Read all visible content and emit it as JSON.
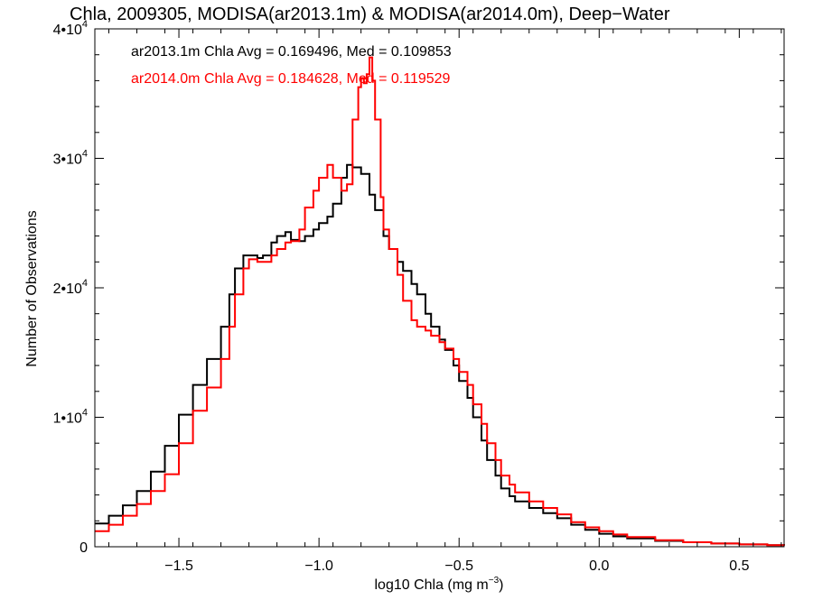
{
  "chart_data": {
    "type": "line",
    "title": "Chla, 2009305, MODISA(ar2013.1m) & MODISA(ar2014.0m), Deep−Water",
    "xlabel": "log10 Chla (mg m",
    "xlabel_sup": "−3",
    "xlabel_suffix": ")",
    "ylabel": "Number of Observations",
    "xlim": [
      -1.8,
      0.66
    ],
    "ylim": [
      0,
      40000
    ],
    "grid": false,
    "x_ticks": [
      {
        "value": -1.5,
        "label": "−1.5"
      },
      {
        "value": -1.0,
        "label": "−1.0"
      },
      {
        "value": -0.5,
        "label": "−0.5"
      },
      {
        "value": 0.0,
        "label": "0.0"
      },
      {
        "value": 0.5,
        "label": "0.5"
      }
    ],
    "y_ticks": [
      {
        "value": 0,
        "label": "0",
        "sup": ""
      },
      {
        "value": 10000,
        "label": "1•10",
        "sup": "4"
      },
      {
        "value": 20000,
        "label": "2•10",
        "sup": "4"
      },
      {
        "value": 30000,
        "label": "3•10",
        "sup": "4"
      },
      {
        "value": 40000,
        "label": "4•10",
        "sup": "4"
      }
    ],
    "annotations": [
      {
        "text": "ar2013.1m Chla Avg = 0.169496, Med = 0.109853",
        "color": "#000000"
      },
      {
        "text": "ar2014.0m Chla Avg = 0.184628, Med = 0.119529",
        "color": "#ff0000"
      }
    ],
    "series": [
      {
        "color": "#000000",
        "x": [
          -1.8,
          -1.75,
          -1.7,
          -1.65,
          -1.6,
          -1.55,
          -1.5,
          -1.45,
          -1.4,
          -1.35,
          -1.32,
          -1.3,
          -1.27,
          -1.25,
          -1.22,
          -1.2,
          -1.17,
          -1.15,
          -1.12,
          -1.1,
          -1.07,
          -1.05,
          -1.02,
          -1.0,
          -0.97,
          -0.95,
          -0.92,
          -0.9,
          -0.88,
          -0.85,
          -0.82,
          -0.8,
          -0.77,
          -0.75,
          -0.72,
          -0.7,
          -0.67,
          -0.65,
          -0.62,
          -0.6,
          -0.57,
          -0.55,
          -0.52,
          -0.5,
          -0.47,
          -0.45,
          -0.42,
          -0.4,
          -0.37,
          -0.35,
          -0.32,
          -0.3,
          -0.25,
          -0.2,
          -0.15,
          -0.1,
          -0.05,
          0.0,
          0.05,
          0.1,
          0.2,
          0.3,
          0.4,
          0.5,
          0.6,
          0.66
        ],
        "y": [
          1800,
          2400,
          3200,
          4300,
          5800,
          7800,
          10200,
          12500,
          14500,
          17000,
          19500,
          21500,
          22500,
          22500,
          22300,
          22500,
          23500,
          24000,
          24300,
          23700,
          23600,
          24000,
          24500,
          25000,
          25500,
          26500,
          28500,
          29500,
          29300,
          28800,
          27200,
          26000,
          24000,
          23000,
          22000,
          21300,
          20300,
          19500,
          18000,
          17000,
          16000,
          15200,
          14000,
          12800,
          11500,
          10000,
          8200,
          6700,
          5500,
          4500,
          3900,
          3500,
          3000,
          2600,
          2200,
          1700,
          1300,
          1000,
          800,
          650,
          450,
          350,
          250,
          180,
          120,
          100
        ]
      },
      {
        "color": "#ff0000",
        "x": [
          -1.8,
          -1.75,
          -1.7,
          -1.65,
          -1.6,
          -1.55,
          -1.5,
          -1.45,
          -1.4,
          -1.35,
          -1.32,
          -1.3,
          -1.27,
          -1.25,
          -1.22,
          -1.2,
          -1.17,
          -1.15,
          -1.12,
          -1.1,
          -1.07,
          -1.05,
          -1.02,
          -1.0,
          -0.97,
          -0.95,
          -0.92,
          -0.9,
          -0.88,
          -0.86,
          -0.85,
          -0.84,
          -0.83,
          -0.82,
          -0.81,
          -0.8,
          -0.78,
          -0.77,
          -0.75,
          -0.72,
          -0.7,
          -0.67,
          -0.65,
          -0.62,
          -0.6,
          -0.57,
          -0.55,
          -0.52,
          -0.5,
          -0.47,
          -0.45,
          -0.42,
          -0.4,
          -0.37,
          -0.35,
          -0.32,
          -0.3,
          -0.25,
          -0.2,
          -0.15,
          -0.1,
          -0.05,
          0.0,
          0.05,
          0.1,
          0.2,
          0.3,
          0.4,
          0.5,
          0.6,
          0.66
        ],
        "y": [
          1200,
          1700,
          2400,
          3300,
          4300,
          5600,
          8000,
          10500,
          12300,
          14500,
          17000,
          19500,
          21500,
          22200,
          22000,
          22000,
          22500,
          23000,
          23500,
          23600,
          24500,
          26200,
          27500,
          28500,
          29500,
          28500,
          27500,
          28000,
          33000,
          35500,
          36200,
          35800,
          36500,
          37800,
          36000,
          33000,
          27000,
          24500,
          23000,
          21000,
          19000,
          17500,
          17000,
          16700,
          16300,
          15800,
          15300,
          14500,
          13500,
          12500,
          11000,
          9500,
          8000,
          6700,
          5500,
          4800,
          4200,
          3500,
          3000,
          2500,
          1900,
          1500,
          1200,
          950,
          750,
          500,
          350,
          250,
          180,
          120,
          100
        ]
      }
    ]
  }
}
